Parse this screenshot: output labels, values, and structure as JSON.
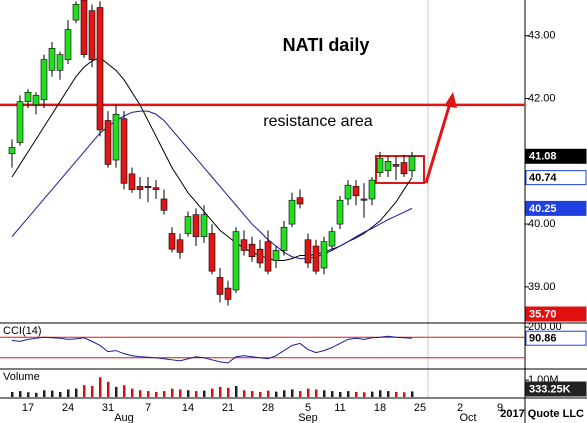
{
  "chart_data": [
    {
      "type": "candlestick",
      "title": "NATI daily",
      "annotations": [
        "resistance area"
      ],
      "source": "2017 Quote LLC",
      "categories": [
        null,
        null,
        "17",
        null,
        null,
        null,
        null,
        "24",
        null,
        null,
        null,
        null,
        "31",
        null,
        null,
        null,
        null,
        "7",
        null,
        null,
        null,
        null,
        "14",
        null,
        null,
        null,
        null,
        "21",
        null,
        null,
        null,
        null,
        "28",
        null,
        null,
        null,
        null,
        "5",
        null,
        null,
        null,
        "11",
        null,
        null,
        null,
        null,
        "18",
        null,
        null,
        null,
        null,
        "25",
        null,
        null,
        null,
        null,
        "2",
        null,
        null,
        null,
        null,
        "9"
      ],
      "months": [
        null,
        null,
        null,
        null,
        null,
        null,
        null,
        null,
        null,
        null,
        null,
        null,
        null,
        null,
        "Aug",
        null,
        null,
        null,
        null,
        null,
        null,
        null,
        null,
        null,
        null,
        null,
        null,
        null,
        null,
        null,
        null,
        null,
        null,
        null,
        null,
        null,
        null,
        "Sep",
        null,
        null,
        null,
        null,
        null,
        null,
        null,
        null,
        null,
        null,
        null,
        null,
        null,
        null,
        null,
        null,
        null,
        null,
        null,
        "Oct",
        null,
        null,
        null,
        null
      ],
      "open": [
        41.12,
        41.3,
        41.95,
        41.9,
        41.98,
        42.45,
        42.45,
        42.62,
        43.25,
        43.57,
        43.4,
        43.45,
        41.65,
        41.02,
        41.68,
        40.8,
        40.6,
        40.6,
        40.58,
        40.4,
        39.85,
        39.75,
        39.85,
        40.15,
        39.8,
        39.85,
        39.15,
        38.98,
        38.95,
        39.75,
        39.68,
        39.6,
        39.72,
        39.42,
        39.58,
        40.0,
        40.42,
        39.75,
        39.65,
        39.3,
        39.65,
        40.0,
        40.4,
        40.6,
        40.4,
        40.4,
        40.82,
        40.85,
        40.95,
        40.98,
        40.85,
        null,
        null,
        null,
        null,
        null,
        null,
        null,
        null,
        null,
        null,
        null
      ],
      "high": [
        41.35,
        42.05,
        42.15,
        42.1,
        42.7,
        42.9,
        42.75,
        43.25,
        43.55,
        43.57,
        43.5,
        43.55,
        41.8,
        41.9,
        41.8,
        40.9,
        40.75,
        40.75,
        40.7,
        40.55,
        39.95,
        39.85,
        40.2,
        40.25,
        40.3,
        40.0,
        39.3,
        39.1,
        39.95,
        39.9,
        39.8,
        39.75,
        39.9,
        39.65,
        40.05,
        40.5,
        40.55,
        39.85,
        39.75,
        39.8,
        39.95,
        40.45,
        40.7,
        40.7,
        40.65,
        40.75,
        41.15,
        41.08,
        41.08,
        41.1,
        41.15,
        null,
        null,
        null,
        null,
        null,
        null,
        null,
        null,
        null,
        null,
        null
      ],
      "low": [
        40.9,
        41.25,
        41.85,
        41.75,
        41.85,
        42.35,
        42.3,
        42.55,
        43.2,
        42.65,
        42.5,
        41.4,
        40.9,
        40.9,
        40.55,
        40.5,
        40.4,
        40.35,
        40.4,
        40.15,
        39.55,
        39.45,
        39.8,
        39.65,
        39.7,
        39.2,
        38.75,
        38.7,
        38.9,
        39.5,
        39.4,
        39.3,
        39.2,
        39.3,
        39.5,
        39.95,
        40.25,
        39.3,
        39.2,
        39.2,
        39.6,
        39.92,
        40.3,
        40.3,
        40.1,
        40.3,
        40.75,
        40.75,
        40.7,
        40.75,
        40.75,
        null,
        null,
        null,
        null,
        null,
        null,
        null,
        null,
        null,
        null,
        null
      ],
      "close": [
        41.22,
        41.95,
        42.1,
        42.05,
        42.62,
        42.8,
        42.7,
        43.1,
        43.5,
        42.7,
        42.62,
        41.5,
        40.95,
        41.75,
        40.65,
        40.55,
        40.55,
        40.58,
        40.55,
        40.22,
        39.6,
        39.55,
        40.12,
        39.8,
        40.15,
        39.25,
        38.88,
        38.8,
        39.88,
        39.58,
        39.48,
        39.38,
        39.25,
        39.58,
        39.95,
        40.38,
        40.32,
        39.38,
        39.25,
        39.72,
        39.88,
        40.38,
        40.62,
        40.45,
        40.38,
        40.7,
        41.05,
        41.0,
        40.92,
        40.8,
        41.08,
        null,
        null,
        null,
        null,
        null,
        null,
        null,
        null,
        null,
        null,
        null
      ],
      "up_color": "#22dd22",
      "down_color": "#e01515",
      "lines": [
        {
          "color": "#000000",
          "values": [
            40.75,
            40.95,
            41.15,
            41.35,
            41.55,
            41.75,
            41.95,
            42.15,
            42.35,
            42.5,
            42.6,
            42.65,
            42.55,
            42.45,
            42.3,
            42.1,
            41.9,
            41.65,
            41.4,
            41.15,
            40.9,
            40.7,
            40.5,
            40.35,
            40.2,
            40.05,
            39.9,
            39.8,
            39.7,
            39.62,
            39.55,
            39.5,
            39.45,
            39.42,
            39.42,
            39.45,
            39.5,
            39.5,
            39.52,
            39.55,
            39.6,
            39.65,
            39.72,
            39.78,
            39.85,
            39.95,
            40.05,
            40.2,
            40.35,
            40.55,
            40.74,
            null,
            null,
            null,
            null,
            null,
            null,
            null,
            null,
            null,
            null,
            null
          ]
        },
        {
          "color": "#1a1a9a",
          "values": [
            39.8,
            39.95,
            40.1,
            40.25,
            40.4,
            40.55,
            40.7,
            40.85,
            41.0,
            41.15,
            41.3,
            41.45,
            41.55,
            41.65,
            41.72,
            41.78,
            41.8,
            41.8,
            41.75,
            41.65,
            41.5,
            41.35,
            41.2,
            41.05,
            40.9,
            40.75,
            40.6,
            40.45,
            40.3,
            40.15,
            40.0,
            39.88,
            39.75,
            39.65,
            39.55,
            39.48,
            39.45,
            39.45,
            39.48,
            39.52,
            39.58,
            39.65,
            39.72,
            39.8,
            39.87,
            39.93,
            40.0,
            40.07,
            40.13,
            40.19,
            40.25,
            null,
            null,
            null,
            null,
            null,
            null,
            null,
            null,
            null,
            null,
            null
          ]
        }
      ],
      "resistance": 41.9,
      "resistance_color": "#e01515",
      "ylim": [
        38.44,
        43.57
      ],
      "yticks": [
        {
          "value": 39,
          "label": "39.00"
        },
        {
          "value": 40,
          "label": "40.00"
        },
        {
          "value": 42,
          "label": "42.00"
        },
        {
          "value": 43,
          "label": "43.00"
        }
      ],
      "price_labels": [
        {
          "value": 41.08,
          "label": "41.08",
          "bg": "#000000",
          "fg": "#ffffff"
        },
        {
          "value": 40.74,
          "label": "40.74",
          "bg": "#ffffff",
          "fg": "#000000"
        },
        {
          "value": 40.25,
          "label": "40.25",
          "bg": "#1f3fe0",
          "fg": "#ffffff"
        },
        {
          "value": 35.7,
          "label": "35.70",
          "bg": "#e01010",
          "fg": "#ffffff"
        }
      ]
    },
    {
      "type": "line",
      "title": "CCI(14)",
      "color": "#1a1a9a",
      "values": [
        70,
        60,
        80,
        90,
        100,
        95,
        90,
        80,
        85,
        95,
        60,
        20,
        -40,
        -30,
        -60,
        -80,
        -90,
        -95,
        -100,
        -110,
        -120,
        -130,
        -110,
        -90,
        -100,
        -120,
        -140,
        -150,
        -90,
        -80,
        -90,
        -100,
        -110,
        -80,
        -30,
        20,
        40,
        -20,
        -50,
        -30,
        0,
        40,
        80,
        90,
        80,
        95,
        100,
        110,
        100,
        95,
        90.86,
        null,
        null,
        null,
        null,
        null,
        null,
        null,
        null,
        null,
        null,
        null
      ],
      "levels": [
        100,
        -100
      ],
      "level_color": "#e01515",
      "ylim": [
        -200,
        220
      ],
      "yticks": [
        {
          "value": 200,
          "label": "200.00"
        }
      ],
      "price_labels": [
        {
          "value": 90.86,
          "label": "90.86",
          "bg": "#ffffff",
          "fg": "#000000"
        }
      ]
    },
    {
      "type": "bar",
      "title": "Volume",
      "values": [
        300000,
        350000,
        280000,
        250000,
        400000,
        380000,
        300000,
        450000,
        500000,
        700000,
        650000,
        1170000,
        900000,
        600000,
        700000,
        500000,
        400000,
        350000,
        300000,
        350000,
        500000,
        450000,
        400000,
        350000,
        380000,
        500000,
        600000,
        550000,
        650000,
        400000,
        350000,
        300000,
        380000,
        320000,
        400000,
        450000,
        350000,
        500000,
        450000,
        400000,
        350000,
        300000,
        350000,
        300000,
        280000,
        320000,
        400000,
        350000,
        300000,
        280000,
        333250,
        null,
        null,
        null,
        null,
        null,
        null,
        null,
        null,
        null,
        null,
        null
      ],
      "up_color": "#222222",
      "down_color": "#cc1111",
      "ylim": [
        0,
        1600000
      ],
      "yticks": [
        {
          "value": 1000000,
          "label": "1.00M"
        }
      ],
      "price_labels": [
        {
          "value": 333250,
          "label": "333.25K",
          "bg": "#222222",
          "fg": "#ffffff"
        }
      ]
    }
  ]
}
